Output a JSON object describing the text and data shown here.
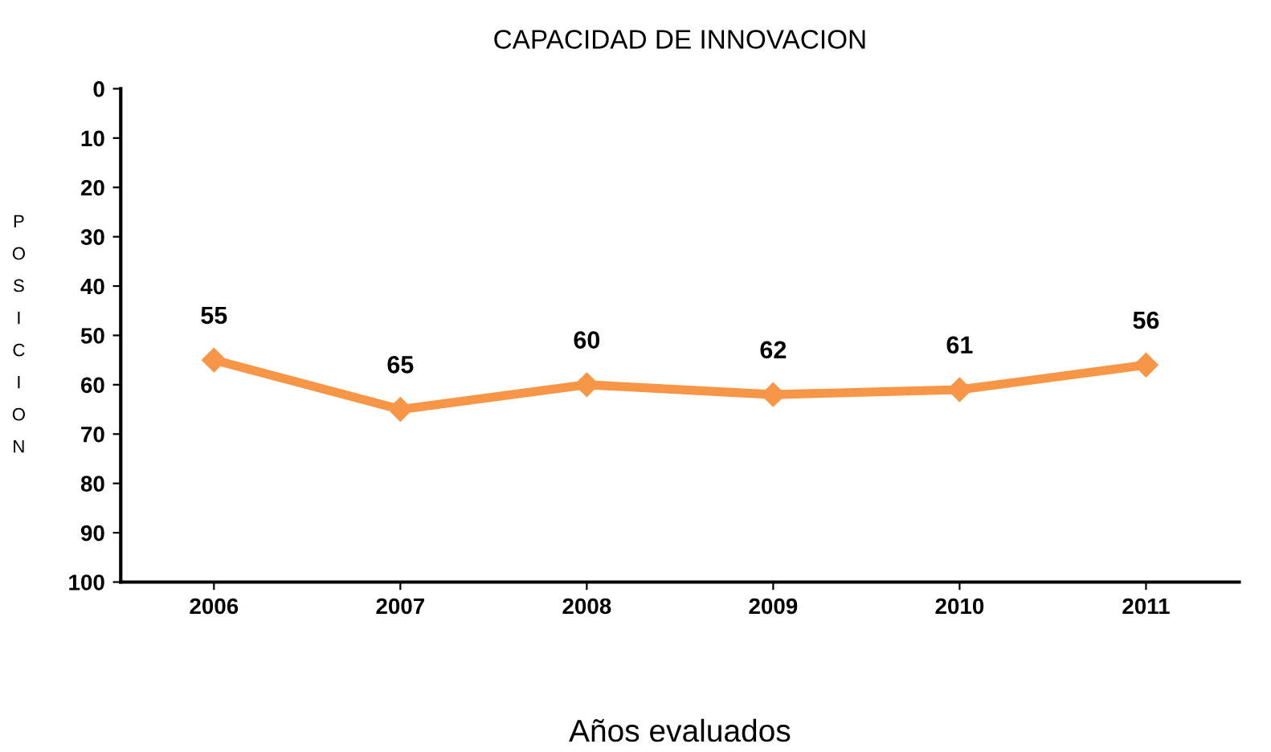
{
  "chart_data": {
    "type": "line",
    "title": "CAPACIDAD DE INNOVACION",
    "xlabel": "Años evaluados",
    "ylabel": "POSICION",
    "categories": [
      "2006",
      "2007",
      "2008",
      "2009",
      "2010",
      "2011"
    ],
    "series": [
      {
        "color": "#f79646",
        "values": [
          55,
          65,
          60,
          62,
          61,
          56
        ]
      }
    ],
    "ylim": [
      100,
      0
    ],
    "yticks": [
      0,
      10,
      20,
      30,
      40,
      50,
      60,
      70,
      80,
      90,
      100
    ],
    "marker": "diamond",
    "line_style": "solid",
    "data_labels": true,
    "grid": false,
    "legend": false
  }
}
